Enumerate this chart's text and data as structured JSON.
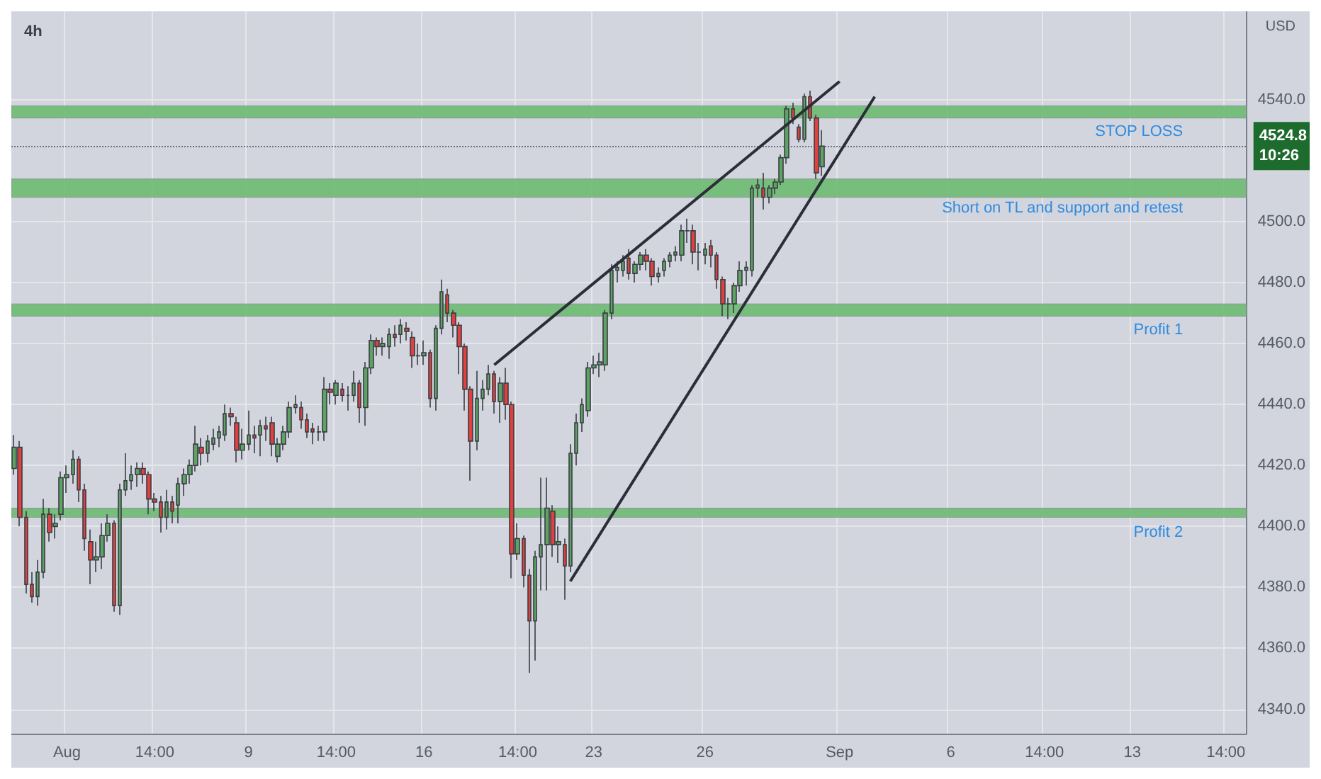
{
  "chart_data": {
    "type": "candlestick",
    "title": "4h",
    "ylabel": "USD",
    "categories": [
      null,
      null,
      null,
      null,
      null,
      null,
      null,
      null,
      null,
      "Aug",
      null,
      null,
      null,
      null,
      null,
      null,
      null,
      null,
      null,
      null,
      null,
      null,
      null,
      null,
      "14:00",
      null,
      null,
      null,
      null,
      null,
      null,
      null,
      null,
      null,
      null,
      null,
      null,
      null,
      null,
      null,
      "9",
      null,
      null,
      null,
      null,
      null,
      null,
      null,
      null,
      null,
      null,
      null,
      null,
      null,
      null,
      "14:00",
      null,
      null,
      null,
      null,
      null,
      null,
      null,
      null,
      null,
      null,
      null,
      null,
      null,
      null,
      "16",
      null,
      null,
      null,
      null,
      null,
      null,
      null,
      null,
      null,
      null,
      null,
      null,
      null,
      null,
      null,
      "14:00",
      null,
      null,
      null,
      null,
      null,
      null,
      null,
      null,
      null,
      null,
      null,
      null,
      "23",
      null,
      null,
      null,
      null,
      null,
      null,
      null,
      null,
      null,
      null,
      null,
      null,
      null,
      null,
      null,
      null,
      null,
      null,
      "26",
      null,
      null,
      null,
      null,
      null,
      null,
      null,
      null,
      null,
      null,
      null,
      null,
      null,
      null,
      null,
      null,
      null,
      null,
      null,
      null,
      null,
      null,
      "Sep",
      null,
      null,
      null,
      null,
      null,
      null,
      null,
      null,
      null,
      null,
      null,
      null,
      null,
      null,
      null,
      null,
      null,
      null,
      "6",
      null,
      null,
      null,
      null,
      null,
      null,
      null,
      null,
      null,
      null,
      null,
      null,
      null,
      null,
      null,
      "14:00",
      null,
      null,
      null,
      null,
      null,
      null,
      null,
      null,
      null,
      null,
      null,
      null,
      null,
      null,
      "13",
      null,
      null,
      null,
      null,
      null,
      null,
      null,
      null,
      null,
      null,
      null,
      null,
      null,
      null,
      null,
      "14:00",
      null,
      null,
      null
    ],
    "ohlc": [
      [
        4419,
        4430,
        4417,
        4426
      ],
      [
        4426,
        4428,
        4400,
        4403
      ],
      [
        4403,
        4405,
        4378,
        4381
      ],
      [
        4381,
        4385,
        4375,
        4377
      ],
      [
        4377,
        4389,
        4374,
        4385
      ],
      [
        4385,
        4409,
        4383,
        4404
      ],
      [
        4404,
        4406,
        4395,
        4398
      ],
      [
        4400,
        4404,
        4396,
        4401
      ],
      [
        4404,
        4418,
        4402,
        4416
      ],
      [
        4416,
        4420,
        4411,
        4417
      ],
      [
        4417,
        4425,
        4414,
        4422
      ],
      [
        4422,
        4423,
        4408,
        4412
      ],
      [
        4412,
        4414,
        4392,
        4396
      ],
      [
        4395,
        4399,
        4381,
        4389
      ],
      [
        4389,
        4395,
        4385,
        4390
      ],
      [
        4390,
        4401,
        4386,
        4397
      ],
      [
        4397,
        4404,
        4395,
        4401
      ],
      [
        4401,
        4402,
        4372,
        4374
      ],
      [
        4374,
        4414,
        4371,
        4412
      ],
      [
        4412,
        4424,
        4410,
        4415
      ],
      [
        4415,
        4420,
        4412,
        4417
      ],
      [
        4417,
        4421,
        4413,
        4419
      ],
      [
        4419,
        4421,
        4414,
        4417
      ],
      [
        4417,
        4418,
        4404,
        4409
      ],
      [
        4409,
        4411,
        4405,
        4408
      ],
      [
        4408,
        4410,
        4398,
        4403
      ],
      [
        4403,
        4412,
        4399,
        4408
      ],
      [
        4408,
        4410,
        4401,
        4405
      ],
      [
        4407,
        4416,
        4401,
        4414
      ],
      [
        4414,
        4419,
        4410,
        4417
      ],
      [
        4417,
        4422,
        4414,
        4420
      ],
      [
        4420,
        4433,
        4418,
        4427
      ],
      [
        4426,
        4429,
        4420,
        4424
      ],
      [
        4424,
        4430,
        4421,
        4428
      ],
      [
        4427,
        4432,
        4425,
        4429
      ],
      [
        4429,
        4433,
        4426,
        4431
      ],
      [
        4430,
        4440,
        4428,
        4437
      ],
      [
        4437,
        4439,
        4433,
        4436
      ],
      [
        4434,
        4436,
        4421,
        4425
      ],
      [
        4425,
        4432,
        4422,
        4427
      ],
      [
        4427,
        4438,
        4425,
        4430
      ],
      [
        4430,
        4433,
        4424,
        4429
      ],
      [
        4430,
        4435,
        4423,
        4433
      ],
      [
        4433,
        4436,
        4428,
        4432
      ],
      [
        4434,
        4436,
        4423,
        4427
      ],
      [
        4423,
        4429,
        4421,
        4427
      ],
      [
        4427,
        4433,
        4425,
        4431
      ],
      [
        4431,
        4441,
        4429,
        4439
      ],
      [
        4439,
        4443,
        4437,
        4440
      ],
      [
        4439,
        4441,
        4432,
        4435
      ],
      [
        4435,
        4437,
        4429,
        4431
      ],
      [
        4432,
        4434,
        4427,
        4431
      ],
      [
        4431,
        4433,
        4428,
        4431
      ],
      [
        4431,
        4449,
        4428,
        4445
      ],
      [
        4445,
        4447,
        4440,
        4444
      ],
      [
        4443,
        4448,
        4440,
        4447
      ],
      [
        4445,
        4447,
        4441,
        4443
      ],
      [
        4443,
        4446,
        4438,
        4443
      ],
      [
        4443,
        4451,
        4441,
        4447
      ],
      [
        4447,
        4448,
        4434,
        4439
      ],
      [
        4439,
        4454,
        4433,
        4452
      ],
      [
        4452,
        4463,
        4450,
        4461
      ],
      [
        4461,
        4462,
        4456,
        4459
      ],
      [
        4459,
        4462,
        4456,
        4460
      ],
      [
        4459,
        4465,
        4455,
        4463
      ],
      [
        4463,
        4466,
        4459,
        4462
      ],
      [
        4463,
        4468,
        4460,
        4466
      ],
      [
        4465,
        4467,
        4461,
        4464
      ],
      [
        4462,
        4464,
        4452,
        4456
      ],
      [
        4456,
        4460,
        4453,
        4456
      ],
      [
        4456,
        4461,
        4453,
        4457
      ],
      [
        4457,
        4458,
        4439,
        4442
      ],
      [
        4442,
        4466,
        4438,
        4465
      ],
      [
        4465,
        4481,
        4463,
        4477
      ],
      [
        4476,
        4478,
        4467,
        4470
      ],
      [
        4470,
        4471,
        4462,
        4466
      ],
      [
        4466,
        4467,
        4450,
        4459
      ],
      [
        4459,
        4460,
        4438,
        4445
      ],
      [
        4445,
        4446,
        4415,
        4428
      ],
      [
        4428,
        4451,
        4425,
        4442
      ],
      [
        4442,
        4448,
        4438,
        4445
      ],
      [
        4445,
        4453,
        4443,
        4450
      ],
      [
        4450,
        4451,
        4437,
        4441
      ],
      [
        4441,
        4449,
        4434,
        4447
      ],
      [
        4447,
        4452,
        4435,
        4440
      ],
      [
        4440,
        4441,
        4383,
        4391
      ],
      [
        4391,
        4401,
        4389,
        4396
      ],
      [
        4396,
        4397,
        4380,
        4384
      ],
      [
        4384,
        4386,
        4352,
        4369
      ],
      [
        4369,
        4392,
        4356,
        4390
      ],
      [
        4390,
        4416,
        4379,
        4394
      ],
      [
        4394,
        4416,
        4379,
        4406
      ],
      [
        4405,
        4407,
        4390,
        4394
      ],
      [
        4394,
        4400,
        4388,
        4395
      ],
      [
        4394,
        4396,
        4376,
        4387
      ],
      [
        4387,
        4427,
        4385,
        4424
      ],
      [
        4424,
        4437,
        4420,
        4434
      ],
      [
        4434,
        4442,
        4431,
        4440
      ],
      [
        4438,
        4454,
        4436,
        4452
      ],
      [
        4452,
        4456,
        4450,
        4453
      ],
      [
        4453,
        4457,
        4449,
        4454
      ],
      [
        4453,
        4471,
        4451,
        4470
      ],
      [
        4470,
        4486,
        4468,
        4484
      ],
      [
        4484,
        4487,
        4480,
        4485
      ],
      [
        4484,
        4489,
        4482,
        4487
      ],
      [
        4488,
        4491,
        4481,
        4483
      ],
      [
        4483,
        4487,
        4480,
        4486
      ],
      [
        4486,
        4490,
        4484,
        4489
      ],
      [
        4489,
        4491,
        4484,
        4487
      ],
      [
        4487,
        4488,
        4479,
        4482
      ],
      [
        4482,
        4485,
        4480,
        4483
      ],
      [
        4484,
        4488,
        4482,
        4487
      ],
      [
        4487,
        4490,
        4485,
        4489
      ],
      [
        4489,
        4492,
        4487,
        4490
      ],
      [
        4489,
        4499,
        4487,
        4497
      ],
      [
        4497,
        4501,
        4493,
        4497
      ],
      [
        4497,
        4499,
        4486,
        4490
      ],
      [
        4490,
        4493,
        4484,
        4490
      ],
      [
        4489,
        4493,
        4486,
        4491
      ],
      [
        4492,
        4494,
        4485,
        4489
      ],
      [
        4489,
        4490,
        4478,
        4481
      ],
      [
        4481,
        4482,
        4469,
        4473
      ],
      [
        4473,
        4475,
        4468,
        4473
      ],
      [
        4473,
        4480,
        4470,
        4479
      ],
      [
        4479,
        4487,
        4477,
        4484
      ],
      [
        4484,
        4487,
        4479,
        4485
      ],
      [
        4484,
        4512,
        4482,
        4511
      ],
      [
        4511,
        4514,
        4508,
        4512
      ],
      [
        4511,
        4516,
        4504,
        4508
      ],
      [
        4508,
        4512,
        4506,
        4511
      ],
      [
        4511,
        4514,
        4509,
        4513
      ],
      [
        4513,
        4522,
        4512,
        4521
      ],
      [
        4521,
        4538,
        4519,
        4537
      ],
      [
        4537,
        4539,
        4532,
        4534
      ],
      [
        4531,
        4532,
        4526,
        4527
      ],
      [
        4527,
        4542,
        4526,
        4541
      ],
      [
        4541,
        4543,
        4533,
        4534
      ],
      [
        4534,
        4535,
        4514,
        4516
      ],
      [
        4518,
        4530,
        4515,
        4524.8
      ],
      null,
      null,
      null,
      null,
      null,
      null,
      null,
      null,
      null,
      null,
      null,
      null,
      null,
      null,
      null,
      null,
      null,
      null,
      null,
      null,
      null,
      null,
      null,
      null,
      null,
      null,
      null,
      null,
      null,
      null,
      null,
      null,
      null,
      null,
      null,
      null,
      null,
      null,
      null,
      null,
      null,
      null,
      null,
      null,
      null,
      null,
      null,
      null,
      null,
      null,
      null,
      null,
      null,
      null,
      null,
      null,
      null,
      null,
      null,
      null,
      null,
      null,
      null,
      null,
      null,
      null,
      null,
      null,
      null,
      null,
      null,
      null
    ],
    "series": [
      {
        "type": "line",
        "color": "#2b2e38",
        "values": [
          null,
          null,
          null,
          null,
          null,
          null,
          null,
          null,
          null,
          null,
          null,
          null,
          null,
          null,
          null,
          null,
          null,
          null,
          null,
          null,
          null,
          null,
          null,
          null,
          null,
          null,
          null,
          null,
          null,
          null,
          null,
          null,
          null,
          null,
          null,
          null,
          null,
          null,
          null,
          null,
          null,
          null,
          null,
          null,
          null,
          null,
          null,
          null,
          null,
          null,
          null,
          null,
          null,
          null,
          null,
          null,
          null,
          null,
          null,
          null,
          null,
          null,
          null,
          null,
          null,
          null,
          null,
          null,
          null,
          null,
          null,
          null,
          null,
          null,
          null,
          null,
          null,
          null,
          null,
          null,
          null,
          null,
          4453,
          null,
          null,
          null,
          null,
          null,
          null,
          null,
          null,
          null,
          null,
          null,
          null,
          null,
          null,
          null,
          null,
          null,
          null,
          null,
          null,
          null,
          null,
          null,
          null,
          null,
          null,
          null,
          null,
          null,
          null,
          null,
          null,
          null,
          null,
          null,
          null,
          null,
          null,
          null,
          null,
          null,
          null,
          null,
          null,
          null,
          null,
          null,
          null,
          null,
          null,
          null,
          null,
          null,
          null,
          null,
          null,
          null,
          null,
          4546,
          null,
          null,
          null,
          null,
          null,
          null,
          null,
          null,
          null,
          null,
          null,
          null,
          null,
          null,
          null,
          null,
          null,
          null,
          null,
          null,
          null,
          null,
          null,
          null,
          null,
          null,
          null,
          null,
          null,
          null,
          null,
          null,
          null,
          null,
          null,
          null,
          null,
          null,
          null,
          null,
          null,
          null,
          null,
          null,
          null,
          null,
          null,
          null,
          null,
          null,
          null,
          null,
          null,
          null,
          null,
          null,
          null,
          null,
          null,
          null,
          null,
          null,
          null,
          null,
          null,
          null,
          null,
          null,
          null
        ]
      },
      {
        "type": "line",
        "color": "#2b2e38",
        "values": [
          null,
          null,
          null,
          null,
          null,
          null,
          null,
          null,
          null,
          null,
          null,
          null,
          null,
          null,
          null,
          null,
          null,
          null,
          null,
          null,
          null,
          null,
          null,
          null,
          null,
          null,
          null,
          null,
          null,
          null,
          null,
          null,
          null,
          null,
          null,
          null,
          null,
          null,
          null,
          null,
          null,
          null,
          null,
          null,
          null,
          null,
          null,
          null,
          null,
          null,
          null,
          null,
          null,
          null,
          null,
          null,
          null,
          null,
          null,
          null,
          null,
          null,
          null,
          null,
          null,
          null,
          null,
          null,
          null,
          null,
          null,
          null,
          null,
          null,
          null,
          null,
          null,
          null,
          null,
          null,
          null,
          null,
          null,
          null,
          null,
          null,
          null,
          null,
          null,
          null,
          null,
          null,
          null,
          null,
          null,
          4382,
          null,
          null,
          null,
          null,
          null,
          null,
          null,
          null,
          null,
          null,
          null,
          null,
          null,
          null,
          null,
          null,
          null,
          null,
          null,
          null,
          null,
          null,
          null,
          null,
          null,
          null,
          null,
          null,
          null,
          null,
          null,
          null,
          null,
          null,
          null,
          null,
          null,
          null,
          null,
          null,
          null,
          null,
          null,
          null,
          null,
          null,
          null,
          null,
          null,
          null,
          null,
          4541,
          null,
          null,
          null,
          null,
          null,
          null,
          null,
          null,
          null,
          null,
          null,
          null,
          null,
          null,
          null,
          null,
          null,
          null,
          null,
          null,
          null,
          null,
          null,
          null,
          null,
          null,
          null,
          null,
          null,
          null,
          null,
          null,
          null,
          null,
          null,
          null,
          null,
          null,
          null,
          null,
          null,
          null,
          null,
          null,
          null,
          null,
          null,
          null,
          null,
          null,
          null,
          null,
          null,
          null,
          null,
          null,
          null,
          null,
          null,
          null,
          null,
          null,
          null
        ]
      }
    ],
    "ylim": [
      4332,
      4569
    ],
    "yticks": [
      {
        "value": 4340,
        "label": "4340.0"
      },
      {
        "value": 4360,
        "label": "4360.0"
      },
      {
        "value": 4380,
        "label": "4380.0"
      },
      {
        "value": 4400,
        "label": "4400.0"
      },
      {
        "value": 4420,
        "label": "4420.0"
      },
      {
        "value": 4440,
        "label": "4440.0"
      },
      {
        "value": 4460,
        "label": "4460.0"
      },
      {
        "value": 4480,
        "label": "4480.0"
      },
      {
        "value": 4500,
        "label": "4500.0"
      },
      {
        "value": 4540,
        "label": "4540.0"
      }
    ],
    "bands": [
      {
        "axis": "y",
        "from": 4534,
        "to": 4538,
        "label": "STOP LOSS",
        "color": "#6dbb72"
      },
      {
        "axis": "y",
        "from": 4508,
        "to": 4514,
        "label": "Short on TL and support and retest",
        "color": "#6dbb72"
      },
      {
        "axis": "y",
        "from": 4469,
        "to": 4473,
        "label": "Profit 1",
        "color": "#6dbb72"
      },
      {
        "axis": "y",
        "from": 4403,
        "to": 4406,
        "label": "Profit 2",
        "color": "#6dbb72"
      }
    ],
    "ref_lines": [
      {
        "axis": "y",
        "value": 4524.8,
        "label": "4524.8",
        "color": "#6b707c",
        "line_style": "dotted"
      }
    ],
    "annotations": [
      "10:26"
    ],
    "grid": true
  }
}
